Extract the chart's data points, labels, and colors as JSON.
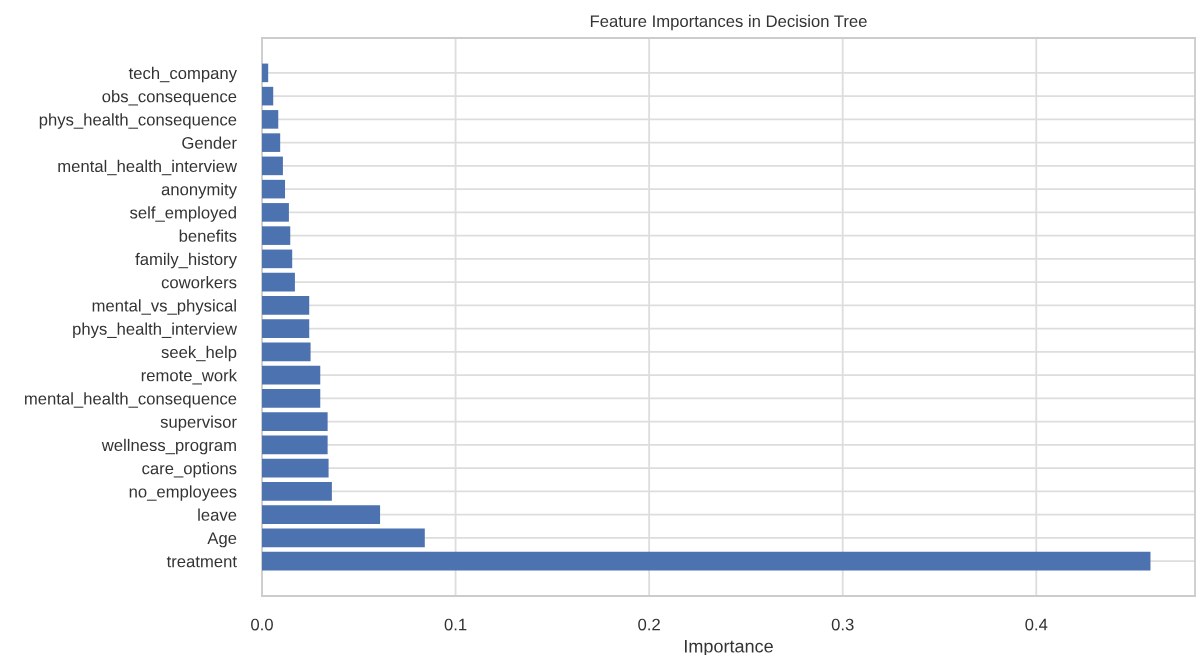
{
  "chart_data": {
    "type": "bar",
    "orientation": "horizontal",
    "title": "Feature Importances in Decision Tree",
    "xlabel": "Importance",
    "categories": [
      "tech_company",
      "obs_consequence",
      "phys_health_consequence",
      "Gender",
      "mental_health_interview",
      "anonymity",
      "self_employed",
      "benefits",
      "family_history",
      "coworkers",
      "mental_vs_physical",
      "phys_health_interview",
      "seek_help",
      "remote_work",
      "mental_health_consequence",
      "supervisor",
      "wellness_program",
      "care_options",
      "no_employees",
      "leave",
      "Age",
      "treatment"
    ],
    "values": [
      0.0032,
      0.0058,
      0.0084,
      0.0094,
      0.0108,
      0.0119,
      0.0139,
      0.0146,
      0.0156,
      0.017,
      0.0244,
      0.0244,
      0.0251,
      0.0301,
      0.0301,
      0.0339,
      0.0339,
      0.0344,
      0.0361,
      0.061,
      0.0841,
      0.459
    ],
    "color": "#4c72b0",
    "xlim": [
      0,
      0.482
    ],
    "xticks": [
      {
        "value": 0,
        "label": "0.0"
      },
      0.1,
      0.2,
      0.3,
      0.4
    ],
    "grid": true
  }
}
